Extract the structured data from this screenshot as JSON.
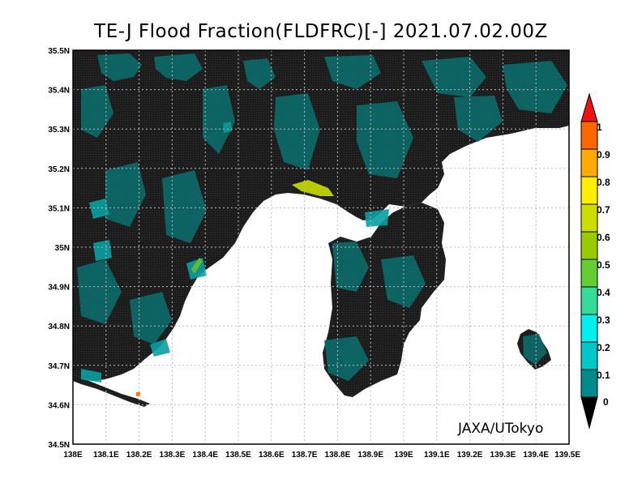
{
  "title": "TE-J Flood Fraction(FLDFRC)[-] 2021.07.02.00Z",
  "credit": "JAXA/UTokyo",
  "axes": {
    "x_ticks": [
      "138E",
      "138.1E",
      "138.2E",
      "138.3E",
      "138.4E",
      "138.5E",
      "138.6E",
      "138.7E",
      "138.8E",
      "138.9E",
      "139E",
      "139.1E",
      "139.2E",
      "139.3E",
      "139.4E",
      "139.5E"
    ],
    "y_ticks": [
      "34.5N",
      "34.6N",
      "34.7N",
      "34.8N",
      "34.9N",
      "35N",
      "35.1N",
      "35.2N",
      "35.3N",
      "35.4N",
      "35.5N"
    ]
  },
  "colorbar": {
    "labels": [
      "0",
      "0.1",
      "0.2",
      "0.3",
      "0.4",
      "0.5",
      "0.6",
      "0.7",
      "0.8",
      "0.9",
      "1"
    ],
    "colors": [
      "#0c5a5a",
      "#008c8c",
      "#00c8c8",
      "#00f0f0",
      "#33dd99",
      "#66cc33",
      "#99cc00",
      "#ccdd00",
      "#ffee00",
      "#ffaa00",
      "#ff6600",
      "#ee1111"
    ]
  },
  "colors": {
    "land": "#1f1f1f",
    "sea": "#ffffff",
    "low_flood": "#0c5a5a",
    "mid_flood": "#0aa0a0",
    "high_flood": "#ccdd00"
  }
}
